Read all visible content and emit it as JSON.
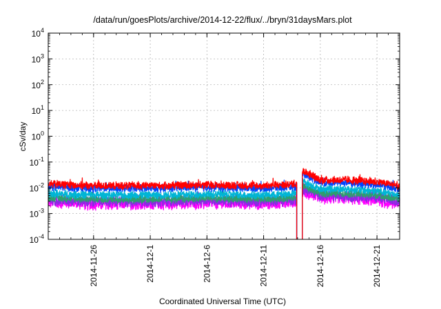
{
  "chart_data": {
    "type": "line",
    "title": "/data/run/goesPlots/archive/2014-12-22/flux/../bryn/31daysMars.plot",
    "xlabel": "Coordinated Universal Time (UTC)",
    "ylabel": "cSv/day",
    "y_scale": "log",
    "ylim": [
      0.0001,
      10000
    ],
    "y_ticks": [
      {
        "value": 10000,
        "base": "10",
        "exp": "4"
      },
      {
        "value": 1000,
        "base": "10",
        "exp": "3"
      },
      {
        "value": 100,
        "base": "10",
        "exp": "2"
      },
      {
        "value": 10,
        "base": "10",
        "exp": "1"
      },
      {
        "value": 1,
        "base": "10",
        "exp": "0"
      },
      {
        "value": 0.1,
        "base": "10",
        "exp": "-1"
      },
      {
        "value": 0.01,
        "base": "10",
        "exp": "-2"
      },
      {
        "value": 0.001,
        "base": "10",
        "exp": "-3"
      },
      {
        "value": 0.0001,
        "base": "10",
        "exp": "-4"
      }
    ],
    "x_range": [
      "2014-11-22",
      "2014-12-23"
    ],
    "x_ticks": [
      "2014-11-26",
      "2014-12-1",
      "2014-12-6",
      "2014-12-11",
      "2014-12-16",
      "2014-12-21"
    ],
    "grid": true,
    "legend": "none",
    "gap": {
      "start": "2014-12-13T22:00",
      "end": "2014-12-14T10:00"
    },
    "series": [
      {
        "color": "#ff0000",
        "x": [
          "2014-11-22",
          "2014-11-26",
          "2014-12-01",
          "2014-12-06",
          "2014-12-11",
          "2014-12-13T20:00",
          "2014-12-14T12:00",
          "2014-12-15",
          "2014-12-16",
          "2014-12-18",
          "2014-12-21",
          "2014-12-23"
        ],
        "y": [
          0.014,
          0.012,
          0.012,
          0.013,
          0.012,
          0.014,
          0.045,
          0.035,
          0.02,
          0.02,
          0.017,
          0.012
        ]
      },
      {
        "color": "#0044ff",
        "x": [
          "2014-11-22",
          "2014-11-26",
          "2014-12-01",
          "2014-12-06",
          "2014-12-11",
          "2014-12-13T20:00",
          "2014-12-14T12:00",
          "2014-12-15",
          "2014-12-16",
          "2014-12-18",
          "2014-12-21",
          "2014-12-23"
        ],
        "y": [
          0.011,
          0.0095,
          0.0095,
          0.0105,
          0.0095,
          0.011,
          0.035,
          0.027,
          0.016,
          0.016,
          0.013,
          0.0095
        ]
      },
      {
        "color": "#00b5d5",
        "x": [
          "2014-11-22",
          "2014-11-26",
          "2014-12-01",
          "2014-12-06",
          "2014-12-11",
          "2014-12-13T20:00",
          "2014-12-14T12:00",
          "2014-12-15",
          "2014-12-16",
          "2014-12-18",
          "2014-12-21",
          "2014-12-23"
        ],
        "y": [
          0.006,
          0.0052,
          0.0052,
          0.0056,
          0.0052,
          0.006,
          0.018,
          0.014,
          0.009,
          0.009,
          0.0075,
          0.0052
        ]
      },
      {
        "color": "#2e9e6e",
        "x": [
          "2014-11-22",
          "2014-11-26",
          "2014-12-01",
          "2014-12-06",
          "2014-12-11",
          "2014-12-13T20:00",
          "2014-12-14T12:00",
          "2014-12-15",
          "2014-12-16",
          "2014-12-18",
          "2014-12-21",
          "2014-12-23"
        ],
        "y": [
          0.0042,
          0.0036,
          0.0036,
          0.0039,
          0.0036,
          0.0042,
          0.012,
          0.0095,
          0.0062,
          0.0062,
          0.0052,
          0.0036
        ]
      },
      {
        "color": "#8a2be2",
        "x": [
          "2014-11-22",
          "2014-11-26",
          "2014-12-01",
          "2014-12-06",
          "2014-12-11",
          "2014-12-13T20:00",
          "2014-12-14T12:00",
          "2014-12-15",
          "2014-12-16",
          "2014-12-18",
          "2014-12-21",
          "2014-12-23"
        ],
        "y": [
          0.0035,
          0.003,
          0.003,
          0.0033,
          0.003,
          0.0035,
          0.009,
          0.0075,
          0.005,
          0.005,
          0.0042,
          0.003
        ]
      },
      {
        "color": "#ff00ff",
        "x": [
          "2014-11-22",
          "2014-11-26",
          "2014-12-01",
          "2014-12-06",
          "2014-12-11",
          "2014-12-13T20:00",
          "2014-12-14T12:00",
          "2014-12-15",
          "2014-12-16",
          "2014-12-18",
          "2014-12-21",
          "2014-12-23"
        ],
        "y": [
          0.0027,
          0.0023,
          0.0023,
          0.0025,
          0.0023,
          0.0027,
          0.007,
          0.0058,
          0.0039,
          0.0039,
          0.0032,
          0.0022
        ]
      }
    ]
  }
}
